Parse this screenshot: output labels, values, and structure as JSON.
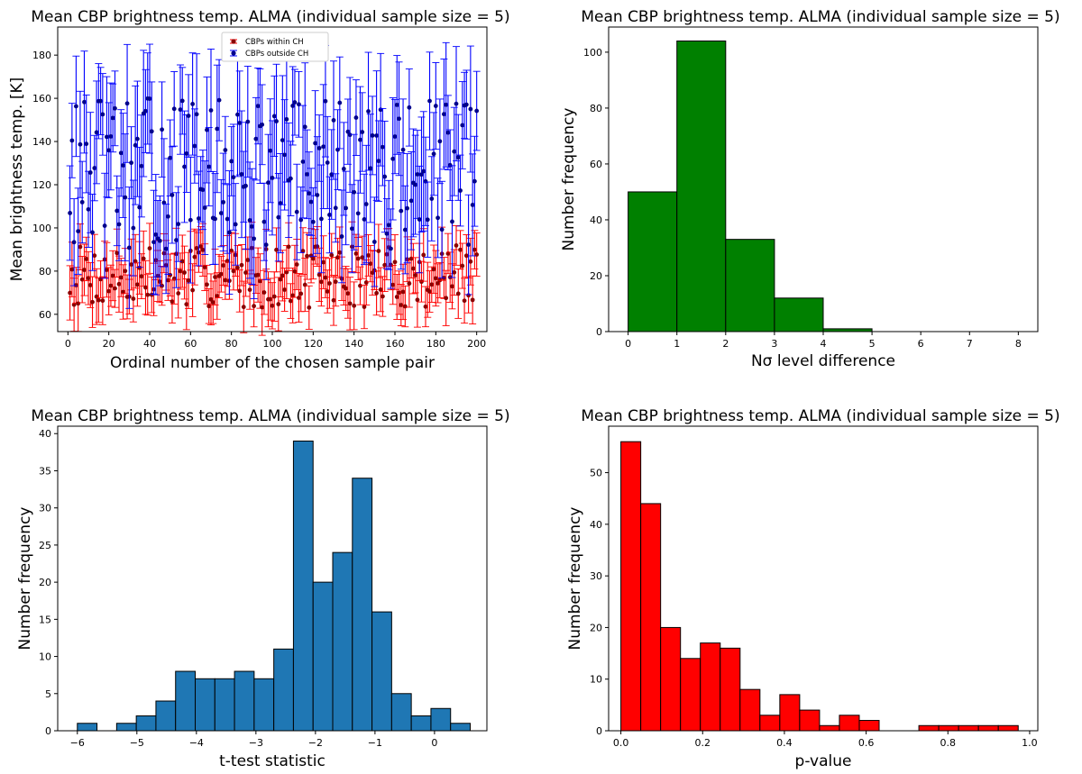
{
  "chart_data": [
    {
      "type": "scatter",
      "title": "Mean CBP brightness temp. ALMA (individual sample size = 5)",
      "xlabel": "Ordinal number of the chosen sample pair",
      "ylabel": "Mean brightness temp. [K]",
      "xlim": [
        -5,
        205
      ],
      "ylim": [
        52,
        193
      ],
      "xticks": [
        0,
        20,
        40,
        60,
        80,
        100,
        120,
        140,
        160,
        180,
        200
      ],
      "yticks": [
        60,
        80,
        100,
        120,
        140,
        160,
        180
      ],
      "legend": {
        "placement": "top-center",
        "entries": [
          "CBPs within CH",
          "CBPs outside CH"
        ]
      },
      "series": [
        {
          "name": "CBPs within CH",
          "color": "#ff0000",
          "marker_color": "#8b0000",
          "n": 200,
          "mean_range": [
            63,
            92
          ],
          "err_range": [
            8,
            13
          ],
          "seed": 7
        },
        {
          "name": "CBPs outside CH",
          "color": "#0000ff",
          "marker_color": "#00008b",
          "n": 200,
          "mean_range": [
            90,
            160
          ],
          "err_range": [
            15,
            30
          ],
          "seed": 13
        }
      ]
    },
    {
      "type": "bar",
      "title": "Mean CBP brightness temp. ALMA (individual sample size = 5)",
      "xlabel": "Nσ level difference",
      "ylabel": "Number frequency",
      "xlim": [
        -0.4,
        8.4
      ],
      "ylim": [
        0,
        109
      ],
      "xticks": [
        0,
        1,
        2,
        3,
        4,
        5,
        6,
        7,
        8
      ],
      "yticks": [
        0,
        20,
        40,
        60,
        80,
        100
      ],
      "bin_edges": [
        0,
        1,
        2,
        3,
        4,
        5,
        6,
        7,
        8
      ],
      "values": [
        50,
        104,
        33,
        12,
        1,
        0,
        0,
        0
      ],
      "color": "#008000"
    },
    {
      "type": "bar",
      "title": "Mean CBP brightness temp. ALMA (individual sample size = 5)",
      "xlabel": "t-test statistic",
      "ylabel": "Number frequency",
      "xlim": [
        -6.33,
        0.88
      ],
      "ylim": [
        0,
        41
      ],
      "xticks": [
        -6,
        -5,
        -4,
        -3,
        -2,
        -1,
        0
      ],
      "yticks": [
        0,
        5,
        10,
        15,
        20,
        25,
        30,
        35,
        40
      ],
      "bin_start": -6.0,
      "bin_width": 0.33,
      "values": [
        1,
        0,
        1,
        2,
        4,
        8,
        7,
        7,
        8,
        7,
        11,
        39,
        20,
        24,
        34,
        16,
        5,
        2,
        3,
        1
      ],
      "color": "#1f77b4"
    },
    {
      "type": "bar",
      "title": "Mean CBP brightness temp. ALMA (individual sample size = 5)",
      "xlabel": "p-value",
      "ylabel": "Number frequency",
      "xlim": [
        -0.03,
        1.02
      ],
      "ylim": [
        0,
        59
      ],
      "xticks": [
        0.0,
        0.2,
        0.4,
        0.6,
        0.8,
        1.0
      ],
      "xtick_labels": [
        "0.0",
        "0.2",
        "0.4",
        "0.6",
        "0.8",
        "1.0"
      ],
      "yticks": [
        0,
        10,
        20,
        30,
        40,
        50
      ],
      "bin_start": 0.0,
      "bin_width": 0.0486,
      "values": [
        56,
        44,
        20,
        14,
        17,
        16,
        8,
        3,
        7,
        4,
        1,
        3,
        2,
        0,
        0,
        1,
        1,
        1,
        1,
        1
      ],
      "color": "#ff0000"
    }
  ]
}
